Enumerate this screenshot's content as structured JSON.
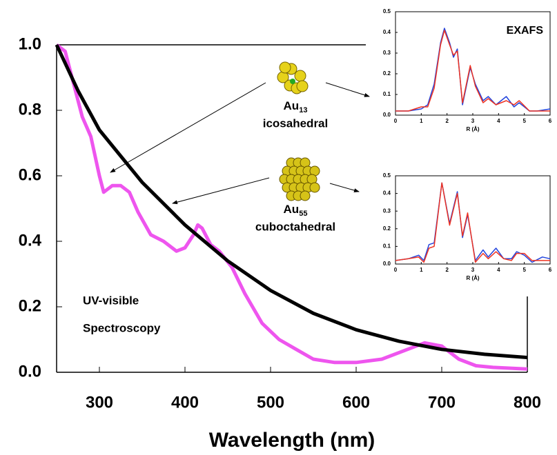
{
  "chart_data": [
    {
      "type": "line",
      "xlabel": "Wavelength (nm)",
      "xlim": [
        250,
        800
      ],
      "ylim": [
        0,
        1
      ],
      "xticks": [
        300,
        400,
        500,
        600,
        700,
        800
      ],
      "yticks": [
        {
          "value": 0,
          "label": "0.0"
        },
        0.2,
        0.4,
        0.6,
        0.8,
        {
          "value": 1,
          "label": "1.0"
        }
      ],
      "annotations": [
        "UV-visible",
        "Spectroscopy",
        "Au",
        "13",
        "icosahedral",
        "Au",
        "55",
        "cuboctahedral"
      ],
      "series": [
        {
          "color": "#ee55ee",
          "x": [
            250,
            260,
            270,
            280,
            290,
            300,
            305,
            315,
            325,
            335,
            345,
            360,
            375,
            390,
            400,
            410,
            415,
            420,
            430,
            440,
            455,
            470,
            490,
            510,
            530,
            550,
            575,
            600,
            630,
            660,
            680,
            700,
            720,
            740,
            760,
            800
          ],
          "values": [
            1.0,
            0.98,
            0.88,
            0.78,
            0.72,
            0.6,
            0.55,
            0.57,
            0.57,
            0.55,
            0.49,
            0.42,
            0.4,
            0.37,
            0.38,
            0.42,
            0.45,
            0.44,
            0.39,
            0.37,
            0.32,
            0.24,
            0.15,
            0.1,
            0.07,
            0.04,
            0.03,
            0.03,
            0.04,
            0.07,
            0.09,
            0.08,
            0.04,
            0.02,
            0.015,
            0.01
          ]
        },
        {
          "color": "#000000",
          "x": [
            250,
            275,
            300,
            350,
            400,
            450,
            500,
            550,
            600,
            650,
            700,
            750,
            800
          ],
          "values": [
            1.0,
            0.86,
            0.74,
            0.58,
            0.45,
            0.34,
            0.25,
            0.18,
            0.13,
            0.095,
            0.07,
            0.055,
            0.045
          ]
        }
      ]
    },
    {
      "type": "line",
      "title": "EXAFS",
      "xlabel": "R (Å)",
      "xlim": [
        0,
        6
      ],
      "ylim": [
        0,
        0.5
      ],
      "xticks": [
        0,
        1,
        2,
        3,
        4,
        5,
        6
      ],
      "yticks": [
        {
          "value": 0,
          "label": "0.0"
        },
        0.1,
        0.2,
        0.3,
        0.4,
        0.5
      ],
      "x": [
        0,
        0.5,
        1,
        1.25,
        1.5,
        1.75,
        1.9,
        2.1,
        2.25,
        2.4,
        2.6,
        2.9,
        3.1,
        3.4,
        3.6,
        3.9,
        4.3,
        4.6,
        4.8,
        5.2,
        5.5,
        6
      ],
      "series": [
        {
          "color": "#2244dd",
          "values": [
            0.02,
            0.02,
            0.03,
            0.05,
            0.15,
            0.35,
            0.42,
            0.35,
            0.28,
            0.32,
            0.05,
            0.23,
            0.15,
            0.07,
            0.09,
            0.05,
            0.09,
            0.04,
            0.06,
            0.02,
            0.02,
            0.03
          ]
        },
        {
          "color": "#ee3322",
          "values": [
            0.02,
            0.02,
            0.04,
            0.04,
            0.13,
            0.34,
            0.41,
            0.34,
            0.29,
            0.31,
            0.06,
            0.24,
            0.14,
            0.06,
            0.08,
            0.05,
            0.07,
            0.05,
            0.07,
            0.02,
            0.02,
            0.02
          ]
        }
      ]
    },
    {
      "type": "line",
      "xlabel": "R (Å)",
      "xlim": [
        0,
        6
      ],
      "ylim": [
        0,
        0.5
      ],
      "xticks": [
        0,
        1,
        2,
        3,
        4,
        5,
        6
      ],
      "yticks": [
        {
          "value": 0,
          "label": "0.0"
        },
        0.1,
        0.2,
        0.3,
        0.4,
        0.5
      ],
      "x": [
        0,
        0.5,
        0.9,
        1.1,
        1.3,
        1.5,
        1.8,
        2.1,
        2.4,
        2.6,
        2.8,
        3.1,
        3.4,
        3.6,
        3.9,
        4.2,
        4.5,
        4.7,
        5.0,
        5.3,
        5.7,
        6
      ],
      "series": [
        {
          "color": "#2244dd",
          "values": [
            0.02,
            0.03,
            0.05,
            0.02,
            0.11,
            0.12,
            0.46,
            0.23,
            0.41,
            0.15,
            0.28,
            0.02,
            0.08,
            0.04,
            0.09,
            0.03,
            0.03,
            0.07,
            0.05,
            0.01,
            0.04,
            0.03
          ]
        },
        {
          "color": "#ee3322",
          "values": [
            0.02,
            0.03,
            0.04,
            0.01,
            0.09,
            0.1,
            0.46,
            0.22,
            0.4,
            0.16,
            0.29,
            0.01,
            0.06,
            0.03,
            0.07,
            0.03,
            0.02,
            0.06,
            0.06,
            0.02,
            0.02,
            0.02
          ]
        }
      ]
    }
  ]
}
